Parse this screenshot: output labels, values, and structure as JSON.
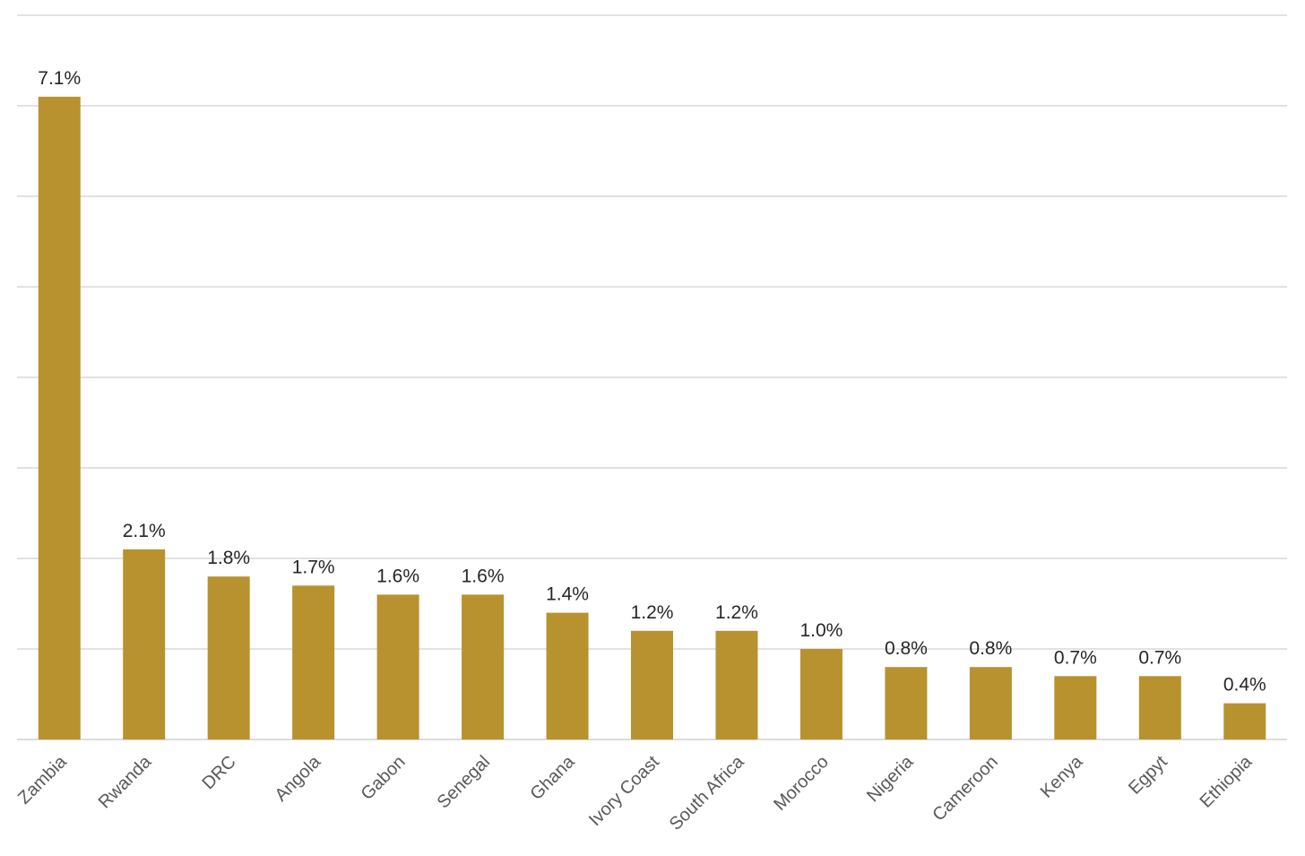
{
  "chart_data": {
    "type": "bar",
    "title": "",
    "xlabel": "",
    "ylabel": "",
    "categories": [
      "Zambia",
      "Rwanda",
      "DRC",
      "Angola",
      "Gabon",
      "Senegal",
      "Ghana",
      "Ivory Coast",
      "South Africa",
      "Morocco",
      "Nigeria",
      "Cameroon",
      "Kenya",
      "Egpyt",
      "Ethiopia"
    ],
    "values": [
      7.1,
      2.1,
      1.8,
      1.7,
      1.6,
      1.6,
      1.4,
      1.2,
      1.2,
      1.0,
      0.8,
      0.8,
      0.7,
      0.7,
      0.4
    ],
    "data_labels": [
      "7.1%",
      "2.1%",
      "1.8%",
      "1.7%",
      "1.6%",
      "1.6%",
      "1.4%",
      "1.2%",
      "1.2%",
      "1.0%",
      "0.8%",
      "0.8%",
      "0.7%",
      "0.7%",
      "0.4%"
    ],
    "ylim": [
      0,
      8
    ],
    "y_gridlines": [
      0,
      1,
      2,
      3,
      4,
      5,
      6,
      7,
      8
    ],
    "grid": true,
    "legend": "none",
    "bar_color": "#b8922f"
  }
}
